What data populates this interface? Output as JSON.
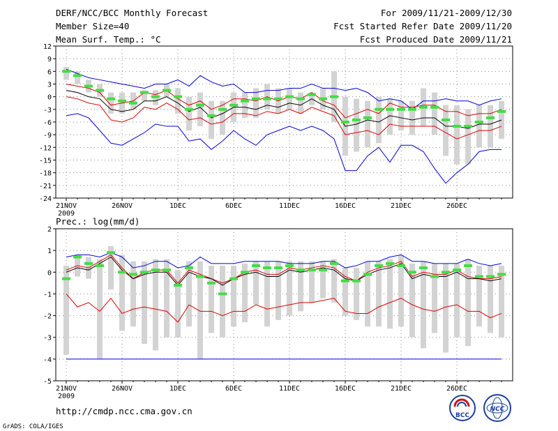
{
  "header": {
    "title": "DERF/NCC/BCC Monthly Forecast",
    "member_size": "Member Size=40",
    "variable": "Mean Surf. Temp.: °C",
    "period": "For 2009/11/21-2009/12/30",
    "started": "Fcst Started Refer Date 2009/11/20",
    "produced": "Fcst Produced Date 2009/11/21"
  },
  "footer": {
    "url": "http://cmdp.ncc.cma.gov.cn",
    "credit": "GrADS: COLA/IGES",
    "logo_bcc": "BCC",
    "logo_ncc": "NCC"
  },
  "colors": {
    "box": "#d3d3d3",
    "median": "#44dd44",
    "envelope": "#0000dd",
    "percentile": "#dd0000",
    "mean": "#000000"
  },
  "chart_data": [
    {
      "type": "line",
      "title": "Mean Surf. Temp.: °C",
      "xlabel": "",
      "ylabel": "°C",
      "x_tick_labels": [
        "21NOV",
        "26NOV",
        "1DEC",
        "6DEC",
        "11DEC",
        "16DEC",
        "21DEC",
        "26DEC"
      ],
      "year_label": "2009",
      "ylim": [
        -24,
        12
      ],
      "y_ticks": [
        12,
        9,
        6,
        3,
        0,
        -3,
        -6,
        -9,
        -12,
        -15,
        -18,
        -21,
        -24
      ],
      "grid": true,
      "days": 40,
      "series": [
        {
          "name": "max",
          "color": "#0000dd",
          "values": [
            6.5,
            5.5,
            4.5,
            4,
            3.5,
            3,
            2.5,
            2,
            3,
            3,
            4,
            2.5,
            5,
            3.5,
            2.5,
            3,
            1,
            1,
            1.5,
            1.5,
            2,
            2,
            3,
            2,
            2,
            1.5,
            2,
            1,
            -1,
            -0.5,
            -1,
            -3,
            -1,
            -1,
            -0.5,
            -1,
            -1,
            -2,
            -1,
            -0.5
          ]
        },
        {
          "name": "upper",
          "color": "#dd0000",
          "values": [
            3,
            2.5,
            2,
            1,
            -2,
            -1.5,
            -1,
            1,
            0.5,
            1.5,
            -0.5,
            -2,
            -1,
            -3,
            -2,
            -0.5,
            -0.5,
            -1,
            0,
            -1,
            0,
            -0.5,
            1,
            -1,
            -2,
            -5,
            -4,
            -3,
            -4,
            -1.5,
            -2.5,
            -2.5,
            -2,
            -2,
            -3.5,
            -3.5,
            -4.5,
            -4,
            -4,
            -3
          ]
        },
        {
          "name": "mean",
          "color": "#000000",
          "values": [
            1.5,
            1,
            0,
            -0.5,
            -3,
            -3.5,
            -3,
            -1,
            -1,
            0,
            -1.5,
            -3.5,
            -2.5,
            -5,
            -4,
            -2.5,
            -2.5,
            -3,
            -2,
            -2.5,
            -1.5,
            -2,
            -0.5,
            -2,
            -3,
            -7,
            -6.5,
            -5.5,
            -6,
            -4.5,
            -5,
            -5.5,
            -5,
            -5,
            -7,
            -7,
            -7.5,
            -6.5,
            -6.5,
            -5.5
          ]
        },
        {
          "name": "lower",
          "color": "#dd0000",
          "values": [
            0,
            -0.5,
            -1.5,
            -2,
            -5.5,
            -6,
            -5,
            -2.5,
            -3,
            -1.5,
            -3,
            -5.5,
            -5,
            -6.5,
            -6,
            -4,
            -4,
            -4.5,
            -3.5,
            -4,
            -3,
            -4,
            -2.5,
            -3.5,
            -4.5,
            -9,
            -8.5,
            -8,
            -9,
            -6.5,
            -7,
            -7,
            -7,
            -7,
            -8.5,
            -10,
            -9,
            -8,
            -8,
            -7
          ]
        },
        {
          "name": "min",
          "color": "#0000dd",
          "values": [
            -4.5,
            -4,
            -5,
            -8,
            -11,
            -11.5,
            -10,
            -8.5,
            -6.5,
            -7,
            -7,
            -10.5,
            -10,
            -12.5,
            -10.5,
            -8,
            -10,
            -11.5,
            -9,
            -8,
            -7,
            -8,
            -7,
            -8,
            -10,
            -17.5,
            -17.5,
            -14,
            -12,
            -15.5,
            -11.5,
            -11.5,
            -13,
            -17,
            -20.5,
            -18,
            -16,
            -13,
            -12.5,
            -12.5
          ]
        },
        {
          "name": "median",
          "color": "#44dd44",
          "values": [
            6,
            5,
            2.5,
            1.5,
            -0.5,
            -1,
            -1.5,
            1,
            0,
            1.5,
            0,
            -3,
            -2,
            -4.5,
            -3,
            -2,
            -1,
            -0.5,
            -0.5,
            -0.5,
            0,
            -0.5,
            0.5,
            -0.5,
            0,
            -6,
            -5.5,
            -5,
            -3,
            -3,
            -3,
            -3,
            -2.5,
            -2.5,
            -5.5,
            -7,
            -7,
            -6,
            -5,
            -3.5
          ]
        },
        {
          "name": "box_high",
          "color": "#d3d3d3",
          "values": [
            7,
            6,
            4,
            3,
            1,
            1,
            1,
            1.5,
            1.5,
            3,
            2,
            0,
            1,
            -1,
            -1,
            1,
            1,
            2,
            3,
            2,
            2,
            1,
            1,
            2,
            6,
            0,
            -0.5,
            -1,
            0,
            -0.5,
            -1,
            -1,
            2,
            1,
            -2,
            -2,
            -3,
            -2,
            -2,
            -1
          ]
        },
        {
          "name": "box_low",
          "color": "#d3d3d3",
          "values": [
            4,
            3,
            1,
            0,
            -4,
            -4,
            -3,
            -1,
            -2,
            0,
            -4,
            -8,
            -7,
            -10,
            -9,
            -6,
            -5,
            -5,
            -3,
            -4,
            -3,
            -4,
            -2,
            -3,
            -6,
            -14,
            -13,
            -12,
            -11,
            -9,
            -8,
            -9,
            -7,
            -9,
            -14,
            -16,
            -16,
            -12,
            -12,
            -10
          ]
        }
      ]
    },
    {
      "type": "line",
      "title": "Prec.: log(mm/d)",
      "xlabel": "",
      "ylabel": "log(mm/d)",
      "x_tick_labels": [
        "21NOV",
        "26NOV",
        "1DEC",
        "6DEC",
        "11DEC",
        "16DEC",
        "21DEC",
        "26DEC"
      ],
      "year_label": "2009",
      "ylim": [
        -5,
        2
      ],
      "y_ticks": [
        2,
        1,
        0,
        -1,
        -2,
        -3,
        -4,
        -5
      ],
      "grid": true,
      "days": 40,
      "series": [
        {
          "name": "max",
          "color": "#0000dd",
          "values": [
            0.7,
            0.8,
            0.8,
            0.7,
            0.9,
            0.7,
            0.2,
            0.3,
            0.5,
            0.5,
            0.2,
            0.3,
            0.7,
            0.4,
            0.4,
            0.4,
            0.5,
            0.5,
            0.5,
            0.5,
            0.4,
            0.4,
            0.4,
            0.5,
            0.5,
            0.2,
            0.3,
            0.5,
            0.5,
            0.7,
            0.8,
            0.5,
            0.5,
            0.4,
            0.4,
            0.4,
            0.6,
            0.4,
            0.3,
            0.4
          ]
        },
        {
          "name": "upper",
          "color": "#dd0000",
          "values": [
            0.1,
            0.3,
            0.2,
            0.5,
            0.8,
            0.2,
            -0.3,
            0,
            0.1,
            0.1,
            -0.5,
            0.1,
            -0.1,
            -0.3,
            -0.5,
            -0.3,
            0,
            0.1,
            -0.1,
            -0.1,
            0.2,
            0.1,
            0.2,
            0.3,
            0.2,
            -0.2,
            -0.4,
            0,
            0.2,
            0.3,
            0.5,
            -0.2,
            0,
            -0.1,
            -0.1,
            0.1,
            -0.2,
            -0.3,
            -0.3,
            -0.2
          ]
        },
        {
          "name": "mean",
          "color": "#000000",
          "values": [
            0,
            0.2,
            0.1,
            0.4,
            0.7,
            0.1,
            -0.3,
            -0.1,
            0,
            0,
            -0.6,
            0,
            -0.2,
            -0.3,
            -0.6,
            -0.3,
            -0.1,
            0,
            -0.2,
            -0.2,
            0.1,
            0,
            0.1,
            0.2,
            0.1,
            -0.3,
            -0.4,
            -0.1,
            0.1,
            0.2,
            0.4,
            -0.3,
            -0.1,
            -0.2,
            -0.2,
            0,
            -0.3,
            -0.3,
            -0.4,
            -0.3
          ]
        },
        {
          "name": "lower",
          "color": "#dd0000",
          "values": [
            -1,
            -1.6,
            -1.4,
            -1.8,
            -1.2,
            -1.9,
            -1.7,
            -1.6,
            -1.7,
            -1.8,
            -2.3,
            -1.5,
            -1.8,
            -1.8,
            -2,
            -1.8,
            -1.8,
            -1.5,
            -1.7,
            -1.6,
            -1.5,
            -1.4,
            -1.4,
            -1.3,
            -1.2,
            -1.8,
            -1.9,
            -1.9,
            -1.6,
            -1.4,
            -1.2,
            -1.5,
            -1.7,
            -1.8,
            -1.6,
            -1.5,
            -1.8,
            -1.8,
            -2.1,
            -1.9
          ]
        },
        {
          "name": "min",
          "color": "#0000dd",
          "values": [
            -4,
            -4,
            -4,
            -4,
            -4,
            -4,
            -4,
            -4,
            -4,
            -4,
            -4,
            -4,
            -4,
            -4,
            -4,
            -4,
            -4,
            -4,
            -4,
            -4,
            -4,
            -4,
            -4,
            -4,
            -4,
            -4,
            -4,
            -4,
            -4,
            -4,
            -4,
            -4,
            -4,
            -4,
            -4,
            -4,
            -4,
            -4,
            -4,
            -4
          ]
        },
        {
          "name": "median",
          "color": "#44dd44",
          "values": [
            -0.3,
            0.7,
            0.4,
            0.3,
            0.9,
            0,
            -0.1,
            0,
            0.1,
            0.1,
            -0.6,
            0.2,
            -0.2,
            -0.5,
            -1,
            -0.3,
            0,
            0.3,
            0.2,
            0.2,
            0.3,
            0.1,
            0.1,
            0.1,
            0.4,
            -0.4,
            -0.4,
            -0.1,
            0.3,
            0.4,
            0.3,
            0,
            0.2,
            -0.2,
            0,
            0.1,
            0.3,
            -0.2,
            -0.2,
            -0.1
          ]
        },
        {
          "name": "box_high",
          "color": "#d3d3d3",
          "values": [
            0.3,
            0.8,
            0.7,
            0.6,
            1.2,
            0.8,
            0.5,
            0.5,
            0.6,
            0.6,
            0.1,
            0.5,
            0.5,
            0.3,
            0.3,
            0.3,
            0.4,
            0.5,
            0.5,
            0.5,
            0.5,
            0.5,
            0.5,
            0.5,
            0.6,
            0.2,
            0.2,
            0.5,
            0.5,
            0.6,
            0.8,
            0.4,
            0.5,
            0.4,
            0.4,
            0.4,
            0.6,
            0.3,
            0.3,
            0.3
          ]
        },
        {
          "name": "box_low",
          "color": "#d3d3d3",
          "values": [
            -3.8,
            -0.2,
            -0.3,
            -4,
            -0.8,
            -2.7,
            -2.5,
            -3.3,
            -3.6,
            -3,
            -3,
            -2.5,
            -4,
            -2.8,
            -3,
            -2.5,
            -2.3,
            -1.5,
            -2.5,
            -2.2,
            -2,
            -1.8,
            -1.4,
            -1.2,
            -1.4,
            -2,
            -2.2,
            -2.5,
            -2.5,
            -2.6,
            -2.5,
            -3,
            -3.5,
            -2.8,
            -3.7,
            -3,
            -3.4,
            -2.5,
            -2.8,
            -3
          ]
        }
      ]
    }
  ]
}
